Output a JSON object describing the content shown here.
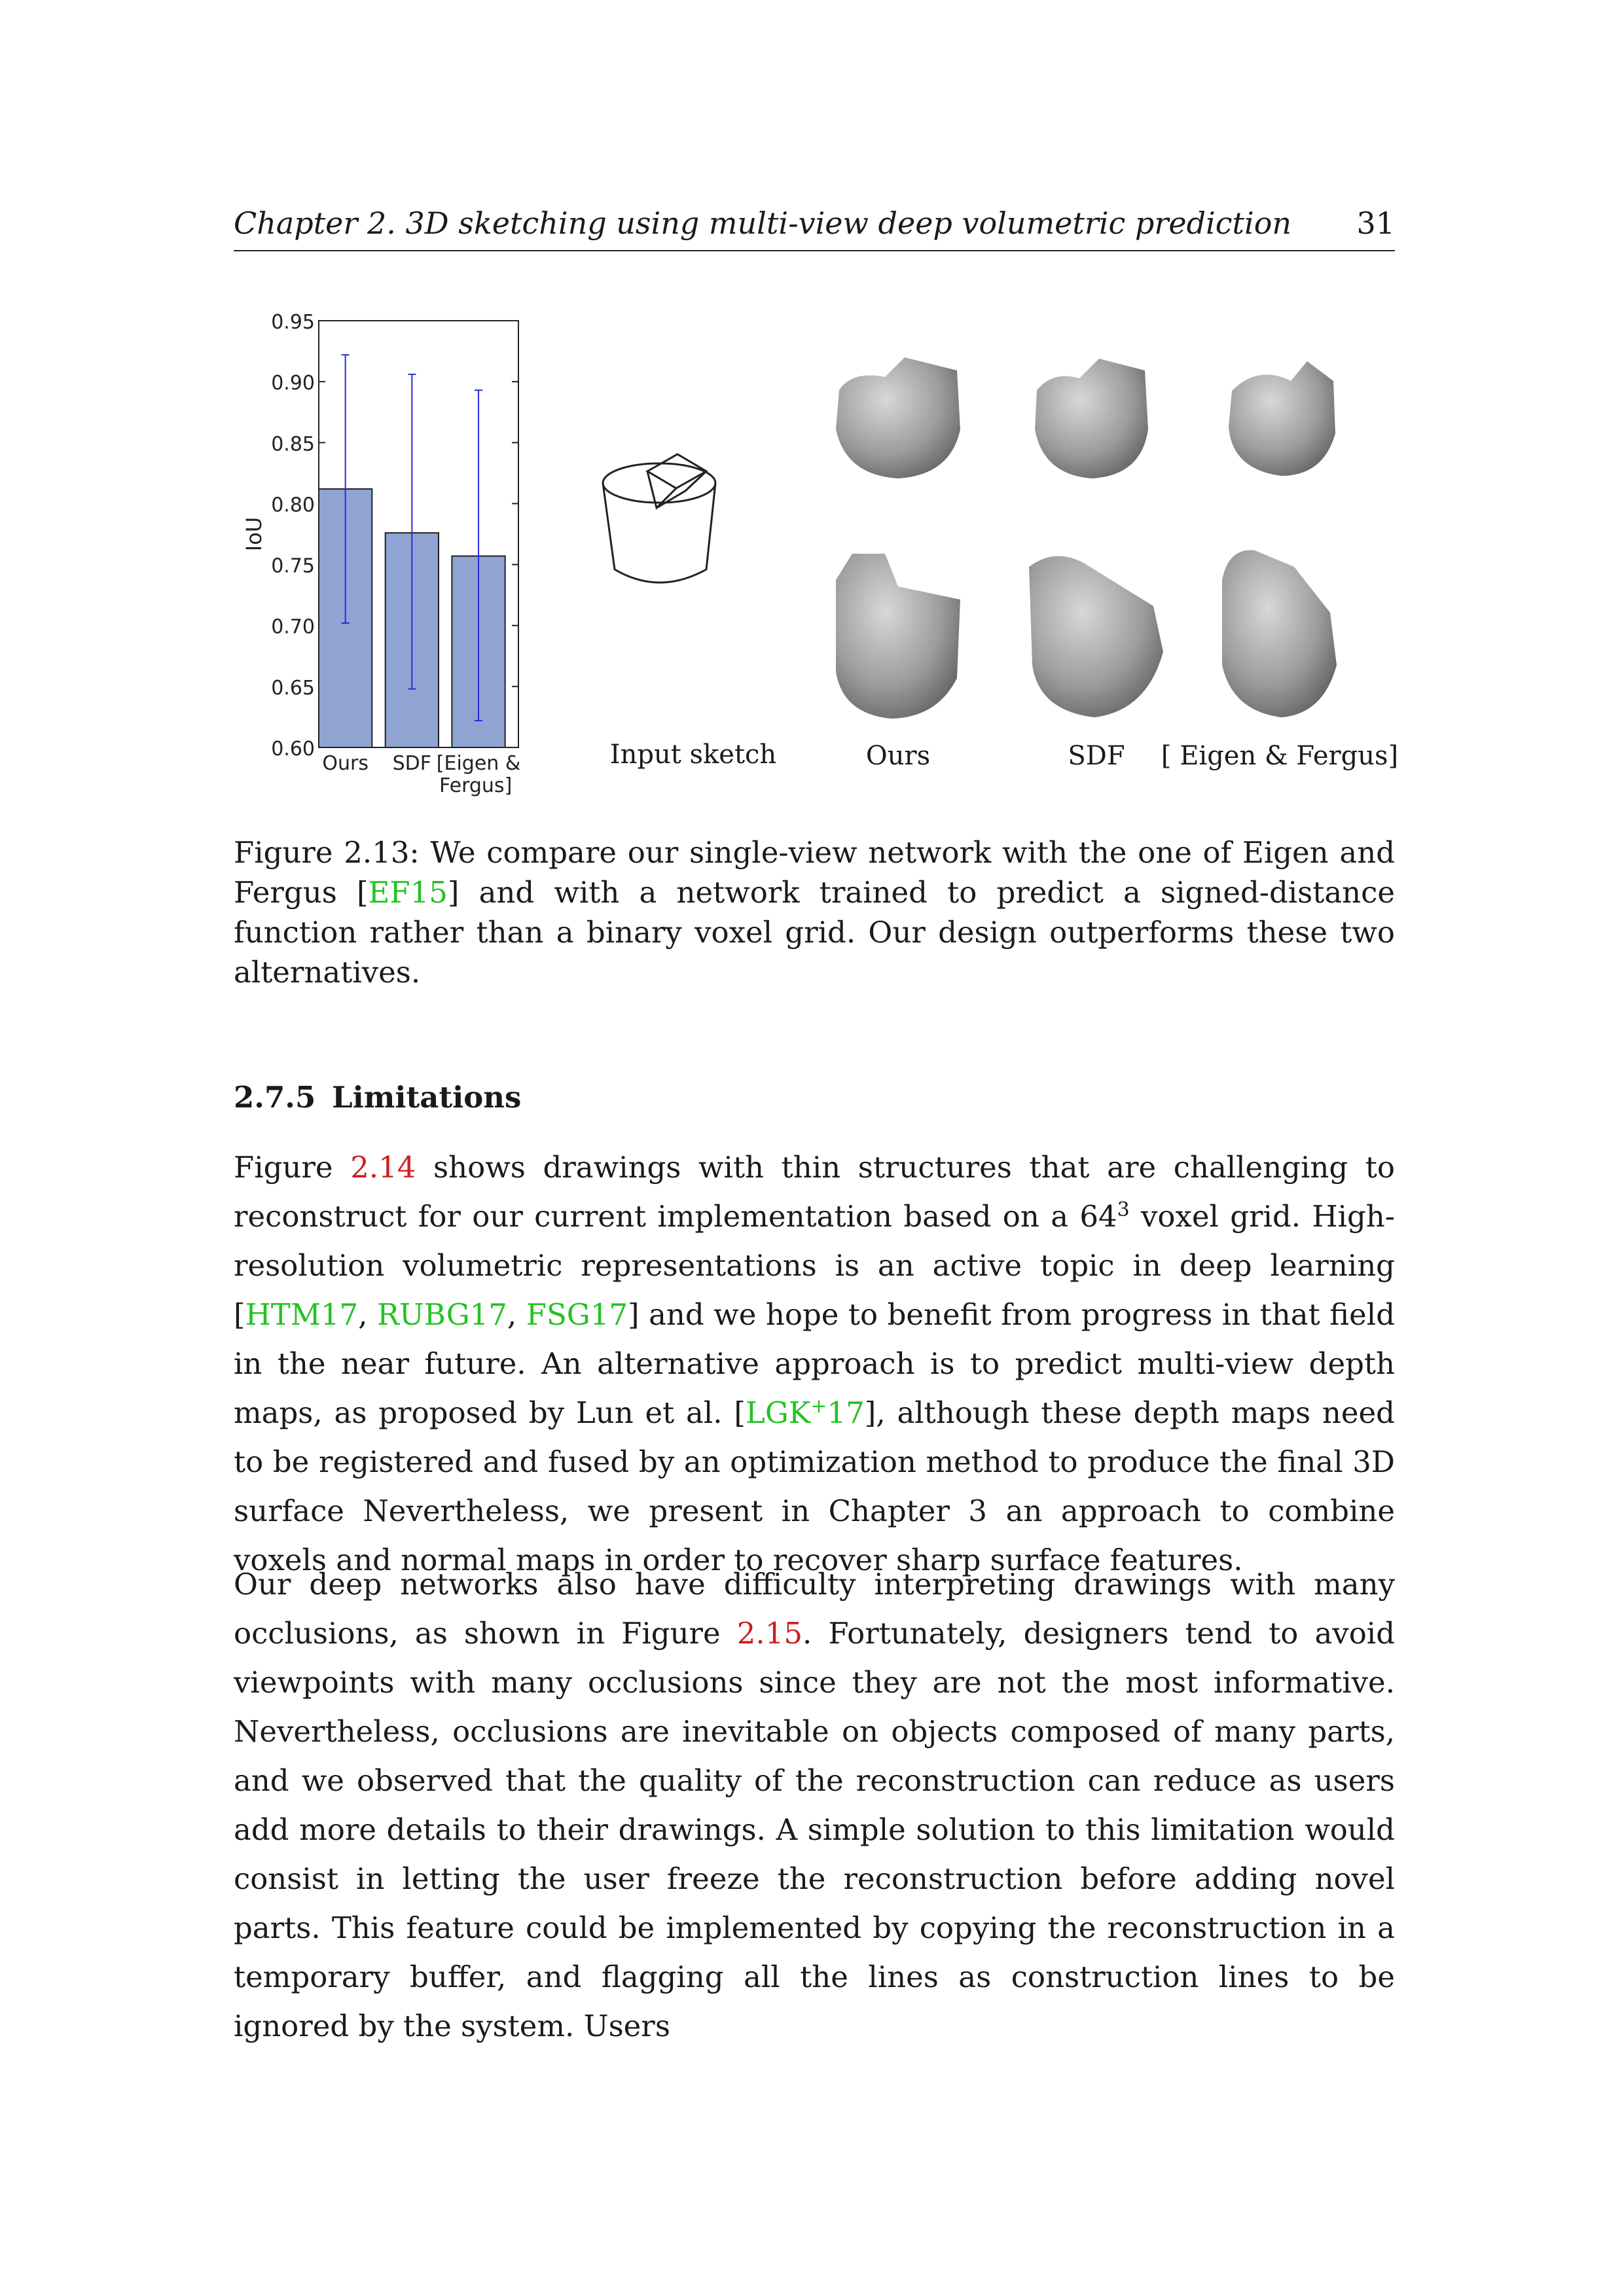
{
  "header": {
    "title": "Chapter 2.  3D sketching using multi-view deep volumetric prediction",
    "page": "31"
  },
  "figure": {
    "col_labels": [
      "Input sketch",
      "Ours",
      "SDF",
      "[ Eigen & Fergus]"
    ],
    "caption": "Figure 2.13: We compare our single-view network with the one of Eigen and Fergus [EF15] and with a network trained to predict a signed-distance function rather than a binary voxel grid. Our design outperforms these two alternatives.",
    "caption_parts": {
      "before": "Figure 2.13: We compare our single-view network with the one of Eigen and Fergus [",
      "cite": "EF15",
      "after": "] and with a network trained to predict a signed-distance function rather than a binary voxel grid. Our design outperforms these two alternatives."
    }
  },
  "chart_data": {
    "type": "bar",
    "categories": [
      "Ours",
      "SDF",
      "[Eigen & Fergus]"
    ],
    "category_lines": [
      [
        "Ours"
      ],
      [
        "SDF"
      ],
      [
        "[Eigen &",
        "Fergus]"
      ]
    ],
    "values": [
      0.812,
      0.776,
      0.757
    ],
    "error_low": [
      0.702,
      0.648,
      0.622
    ],
    "error_high": [
      0.922,
      0.906,
      0.893
    ],
    "ylabel": "IoU",
    "ylim": [
      0.6,
      0.95
    ],
    "yticks": [
      "0.60",
      "0.65",
      "0.70",
      "0.75",
      "0.80",
      "0.85",
      "0.90",
      "0.95"
    ],
    "bar_color": "#8fa4d2",
    "error_color": "#2a2ae0"
  },
  "section": {
    "number": "2.7.5",
    "title": "Limitations"
  },
  "paragraphs": [
    {
      "segments": [
        {
          "t": "Figure "
        },
        {
          "t": "2.14",
          "c": "ref"
        },
        {
          "t": " shows drawings with thin structures that are challenging to reconstruct for our current implementation based on a 64"
        },
        {
          "t": "3",
          "c": "sup"
        },
        {
          "t": " voxel grid. High-resolution volumetric representations is an active topic in deep learning ["
        },
        {
          "t": "HTM17",
          "c": "cite"
        },
        {
          "t": ", "
        },
        {
          "t": "RUBG17",
          "c": "cite"
        },
        {
          "t": ", "
        },
        {
          "t": "FSG17",
          "c": "cite"
        },
        {
          "t": "] and we hope to benefit from progress in that field in the near future.  An alternative approach is to predict multi-view depth maps, as proposed by Lun et al. ["
        },
        {
          "t": "LGK",
          "c": "cite"
        },
        {
          "t": "+",
          "c": "citesup"
        },
        {
          "t": "17",
          "c": "cite"
        },
        {
          "t": "], although these depth maps need to be registered and fused by an optimization method to produce the final 3D surface Nevertheless, we present in Chapter 3 an approach to combine voxels and normal maps in order to recover sharp surface features."
        }
      ]
    },
    {
      "segments": [
        {
          "t": "Our deep networks also have difficulty interpreting drawings with many occlusions, as shown in Figure "
        },
        {
          "t": "2.15",
          "c": "ref"
        },
        {
          "t": ". Fortunately, designers tend to avoid viewpoints with many occlusions since they are not the most informative. Nevertheless, occlusions are inevitable on objects composed of many parts, and we observed that the quality of the reconstruction can reduce as users add more details to their drawings.  A simple solution to this limitation would consist in letting the user freeze the reconstruction before adding novel parts. This feature could be implemented by copying the reconstruction in a temporary buffer, and flagging all the lines as construction lines to be ignored by the system. Users"
        }
      ]
    }
  ]
}
